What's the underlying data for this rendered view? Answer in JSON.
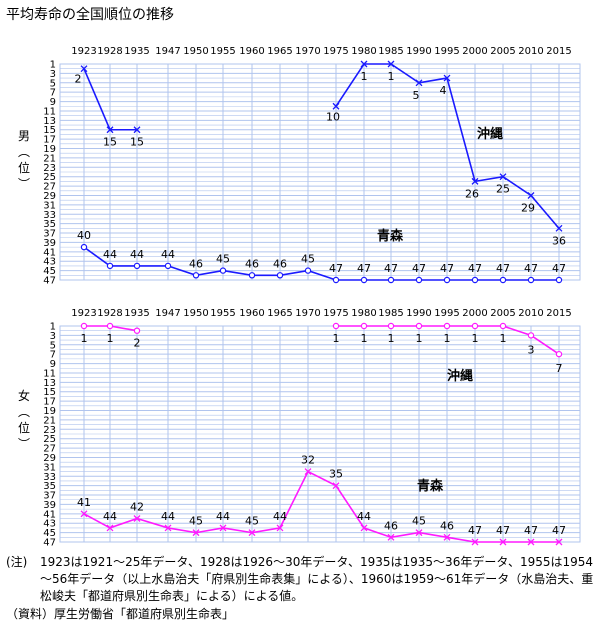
{
  "title": "平均寿命の全国順位の推移",
  "colors": {
    "male": "#1a1aff",
    "female": "#ff1aff",
    "grid": "#b0c4ee"
  },
  "chart_data": [
    {
      "type": "line",
      "panel": "男",
      "ylabel": "男（位）",
      "x": [
        "1923",
        "1928",
        "1935",
        "1947",
        "1950",
        "1955",
        "1960",
        "1965",
        "1970",
        "1975",
        "1980",
        "1985",
        "1990",
        "1995",
        "2000",
        "2005",
        "2010",
        "2015"
      ],
      "yticks": [
        1,
        3,
        5,
        7,
        9,
        11,
        13,
        15,
        17,
        19,
        21,
        23,
        25,
        27,
        29,
        31,
        33,
        35,
        37,
        39,
        41,
        43,
        45,
        47
      ],
      "ylim": [
        1,
        47
      ],
      "y_inverted": true,
      "series": [
        {
          "name": "沖縄",
          "marker": "x",
          "values": [
            2,
            15,
            15,
            null,
            null,
            null,
            null,
            null,
            null,
            10,
            1,
            1,
            5,
            4,
            26,
            25,
            29,
            36
          ]
        },
        {
          "name": "青森",
          "marker": "o",
          "values": [
            40,
            44,
            44,
            44,
            46,
            45,
            46,
            46,
            45,
            47,
            47,
            47,
            47,
            47,
            47,
            47,
            47,
            47
          ]
        }
      ],
      "grid": true
    },
    {
      "type": "line",
      "panel": "女",
      "ylabel": "女（位）",
      "x": [
        "1923",
        "1928",
        "1935",
        "1947",
        "1950",
        "1955",
        "1960",
        "1965",
        "1970",
        "1975",
        "1980",
        "1985",
        "1990",
        "1995",
        "2000",
        "2005",
        "2010",
        "2015"
      ],
      "yticks": [
        1,
        3,
        5,
        7,
        9,
        11,
        13,
        15,
        17,
        19,
        21,
        23,
        25,
        27,
        29,
        31,
        33,
        35,
        37,
        39,
        41,
        43,
        45,
        47
      ],
      "ylim": [
        1,
        47
      ],
      "y_inverted": true,
      "series": [
        {
          "name": "沖縄",
          "marker": "o",
          "values": [
            1,
            1,
            2,
            null,
            null,
            null,
            null,
            null,
            null,
            1,
            1,
            1,
            1,
            1,
            1,
            1,
            3,
            7
          ]
        },
        {
          "name": "青森",
          "marker": "x",
          "values": [
            41,
            44,
            42,
            44,
            45,
            44,
            45,
            44,
            32,
            35,
            44,
            46,
            45,
            46,
            47,
            47,
            47,
            47
          ]
        }
      ],
      "grid": true
    }
  ],
  "notes": {
    "label": "(注)",
    "text": "1923は1921～25年データ、1928は1926～30年データ、1935は1935～36年データ、1955は1954～56年データ（以上水島治夫「府県別生命表集」による）、1960は1959～61年データ（水島治夫、重松峻夫「都道府県別生命表」による）による値。",
    "source": "（資料）厚生労働省「都道府県別生命表」"
  }
}
